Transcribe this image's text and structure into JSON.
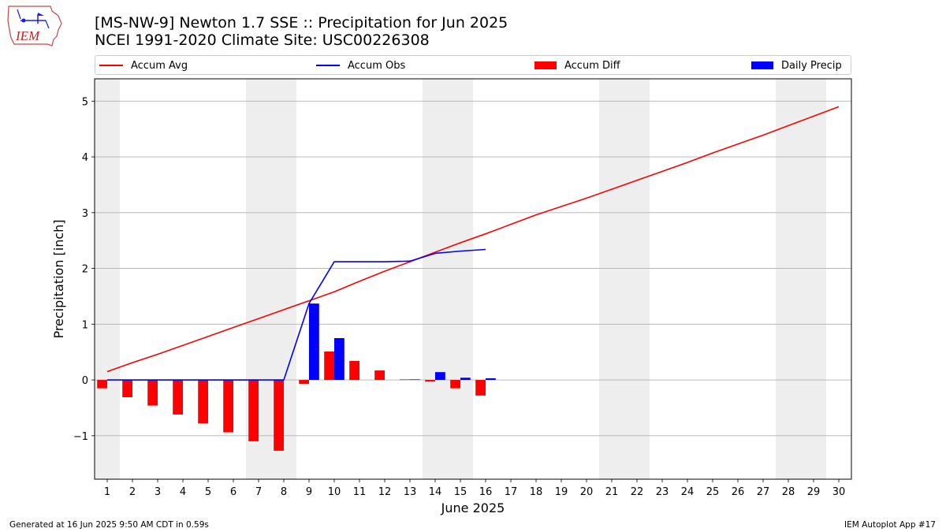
{
  "header": {
    "title_line1": "[MS-NW-9] Newton 1.7 SSE :: Precipitation for Jun 2025",
    "title_line2": "NCEI 1991-2020 Climate Site: USC00226308",
    "logo_text": "IEM"
  },
  "legend": [
    {
      "label": "Accum Avg",
      "color": "#ff0000",
      "kind": "line"
    },
    {
      "label": "Accum Obs",
      "color": "#0000ff",
      "kind": "line"
    },
    {
      "label": "Accum Diff",
      "color": "#ff0000",
      "kind": "bar"
    },
    {
      "label": "Daily Precip",
      "color": "#0000ff",
      "kind": "bar"
    }
  ],
  "footer": {
    "left": "Generated at 16 Jun 2025 9:50 AM CDT in 0.59s",
    "right": "IEM Autoplot App #17"
  },
  "chart_data": {
    "type": "bar",
    "xlabel": "June 2025",
    "ylabel": "Precipitation [inch]",
    "xlim": [
      0.5,
      30.5
    ],
    "ylim": [
      -1.78,
      5.4
    ],
    "yticks": [
      -1,
      0,
      1,
      2,
      3,
      4,
      5
    ],
    "ytick_labels": [
      "−1",
      "0",
      "1",
      "2",
      "3",
      "4",
      "5"
    ],
    "days": [
      1,
      2,
      3,
      4,
      5,
      6,
      7,
      8,
      9,
      10,
      11,
      12,
      13,
      14,
      15,
      16,
      17,
      18,
      19,
      20,
      21,
      22,
      23,
      24,
      25,
      26,
      27,
      28,
      29,
      30
    ],
    "weekend_days": [
      1,
      7,
      8,
      14,
      15,
      21,
      22,
      28,
      29
    ],
    "grid": "horizontal",
    "colors": {
      "avg": "#ff0000",
      "obs": "#0000ff",
      "diff": "#ff0000",
      "daily": "#0000ff",
      "weekend": "#eeeeee",
      "grid": "#b0b0b0"
    },
    "series": [
      {
        "name": "Accum Avg",
        "type": "line",
        "values": [
          0.15,
          0.31,
          0.46,
          0.62,
          0.78,
          0.94,
          1.1,
          1.26,
          1.42,
          1.58,
          1.77,
          1.95,
          2.12,
          2.29,
          2.46,
          2.62,
          2.79,
          2.96,
          3.11,
          3.26,
          3.42,
          3.58,
          3.74,
          3.9,
          4.07,
          4.23,
          4.39,
          4.56,
          4.73,
          4.9
        ]
      },
      {
        "name": "Accum Obs",
        "type": "line",
        "values": [
          0,
          0,
          0,
          0,
          0,
          0,
          0,
          0,
          1.37,
          2.12,
          2.12,
          2.12,
          2.13,
          2.27,
          2.31,
          2.34
        ]
      },
      {
        "name": "Accum Diff",
        "type": "bar",
        "values": [
          -0.15,
          -0.31,
          -0.46,
          -0.62,
          -0.78,
          -0.94,
          -1.1,
          -1.27,
          -0.07,
          0.51,
          0.34,
          0.17,
          0.01,
          -0.03,
          -0.15,
          -0.28
        ]
      },
      {
        "name": "Daily Precip",
        "type": "bar",
        "values": [
          0,
          0,
          0,
          0,
          0,
          0,
          0,
          0,
          1.37,
          0.75,
          0,
          0,
          0.01,
          0.14,
          0.04,
          0.03
        ]
      }
    ]
  }
}
